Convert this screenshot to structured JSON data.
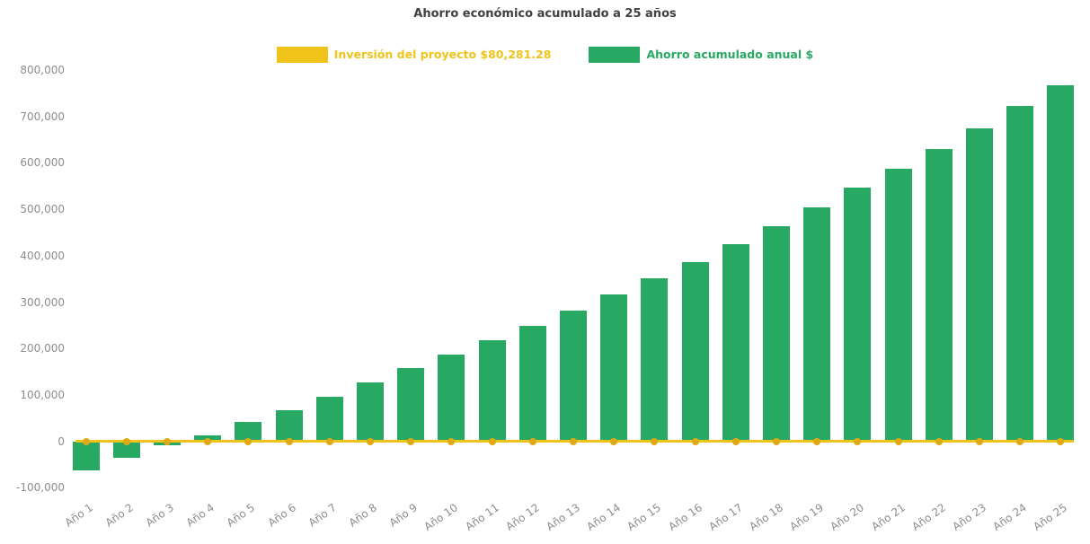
{
  "chart_data": {
    "type": "bar",
    "title": "Ahorro económico acumulado a 25 años",
    "categories": [
      "Año 1",
      "Año 2",
      "Año 3",
      "Año 4",
      "Año 5",
      "Año 6",
      "Año 7",
      "Año 8",
      "Año 9",
      "Año 10",
      "Año 11",
      "Año 12",
      "Año 13",
      "Año 14",
      "Año 15",
      "Año 16",
      "Año 17",
      "Año 18",
      "Año 19",
      "Año 20",
      "Año 21",
      "Año 22",
      "Año 23",
      "Año 24",
      "Año 25"
    ],
    "series": [
      {
        "name": "Ahorro acumulado anual $",
        "type": "bar",
        "color": "#28a963",
        "values": [
          -62000,
          -36000,
          -8000,
          13000,
          41000,
          66000,
          95000,
          126000,
          157000,
          186000,
          217000,
          249000,
          281000,
          317000,
          352000,
          387000,
          424000,
          463000,
          505000,
          546000,
          587000,
          630000,
          675000,
          722000,
          768000
        ]
      },
      {
        "name": "Inversión del proyecto $80,281.28",
        "type": "line",
        "color": "#efc319",
        "marker_color": "#e0a912",
        "y": 0
      }
    ],
    "ylim": [
      -100000,
      800000
    ],
    "ytick_step": 100000,
    "ytick_values": [
      800000,
      700000,
      600000,
      500000,
      400000,
      300000,
      200000,
      100000,
      0,
      -100000
    ],
    "ytick_labels": [
      "800,000",
      "700,000",
      "600,000",
      "500,000",
      "400,000",
      "300,000",
      "200,000",
      "100,000",
      "0",
      "-100,000"
    ],
    "grid": false,
    "legend_position": "top"
  },
  "legend": {
    "items": [
      {
        "label": "Inversión del proyecto $80,281.28",
        "color": "#efc319"
      },
      {
        "label": "Ahorro acumulado anual $",
        "color": "#28a963"
      }
    ]
  }
}
